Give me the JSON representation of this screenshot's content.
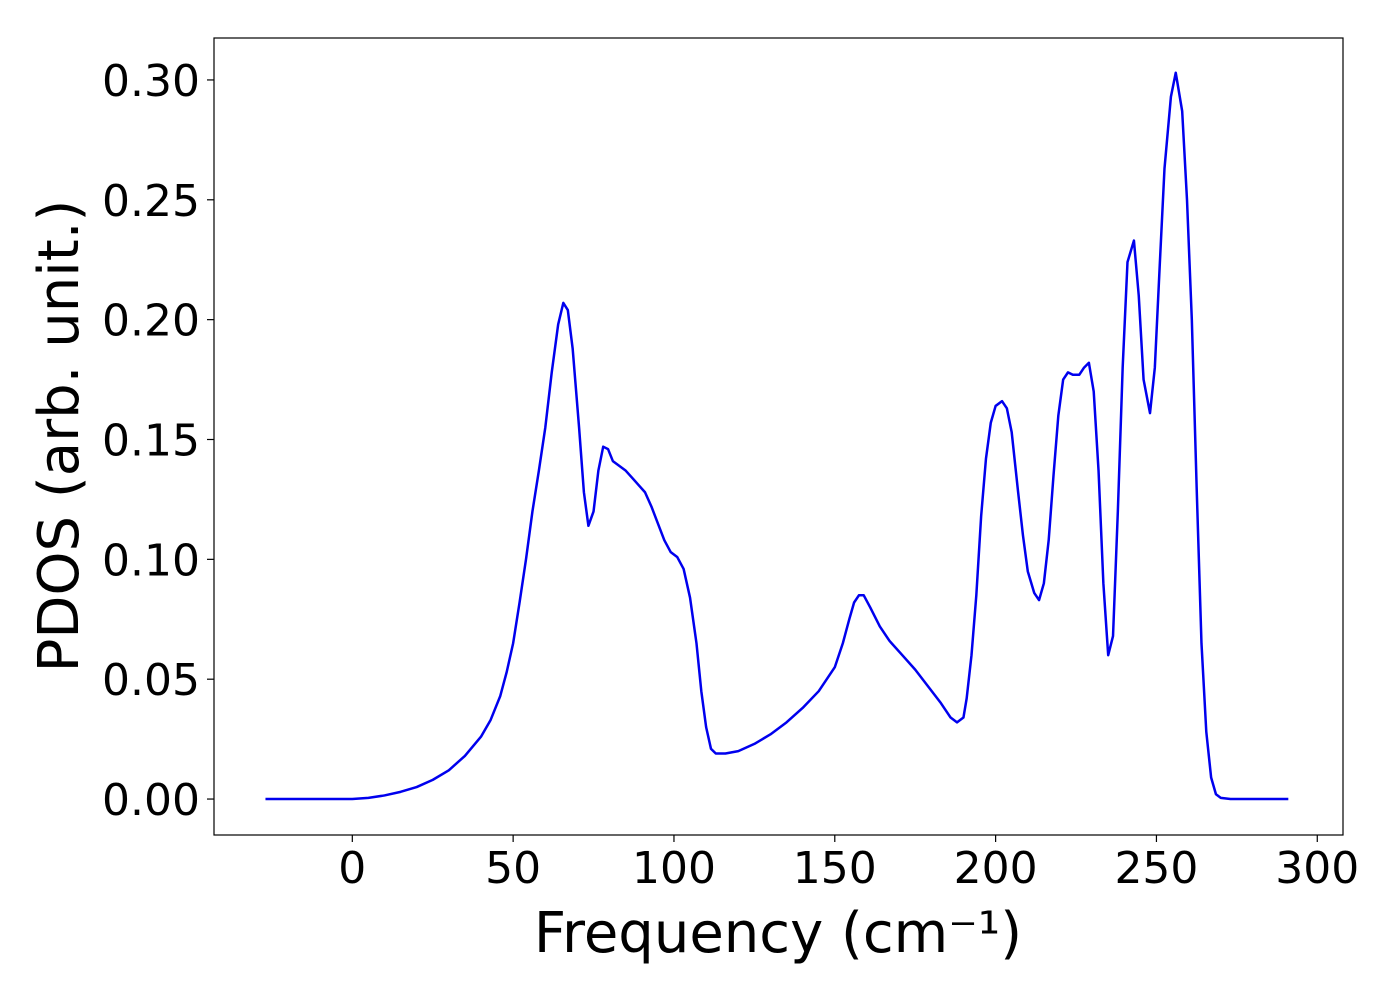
{
  "chart_data": {
    "type": "line",
    "xlabel": "Frequency (cm⁻¹)",
    "ylabel": "PDOS (arb. unit.)",
    "xlim": [
      -43,
      308
    ],
    "ylim": [
      -0.015,
      0.3175
    ],
    "xticks": [
      0,
      50,
      100,
      150,
      200,
      250,
      300
    ],
    "yticks": [
      {
        "value": 0,
        "label": "0.00"
      },
      {
        "value": 0.05,
        "label": "0.05"
      },
      {
        "value": 0.1,
        "label": "0.10"
      },
      {
        "value": 0.15,
        "label": "0.15"
      },
      {
        "value": 0.2,
        "label": "0.20"
      },
      {
        "value": 0.25,
        "label": "0.25"
      },
      {
        "value": 0.3,
        "label": "0.30"
      }
    ],
    "x": [
      -27,
      -10,
      0,
      5,
      10,
      15,
      20,
      25,
      30,
      35,
      40,
      43,
      46,
      48,
      50,
      52,
      54,
      56,
      58,
      60,
      62,
      64,
      65.6,
      67,
      68.5,
      70.5,
      72,
      73.4,
      75,
      76.5,
      78,
      79.5,
      81,
      83,
      85,
      87,
      89,
      91,
      93,
      95,
      97,
      99,
      101,
      103,
      105,
      107,
      108.5,
      110,
      111.5,
      113,
      116,
      120,
      125,
      130,
      135,
      140,
      145,
      150,
      152.5,
      154.5,
      156,
      157.5,
      159,
      161,
      164,
      167,
      171,
      175,
      179,
      183,
      186,
      188,
      190,
      191,
      192.5,
      194,
      195.5,
      197,
      198.5,
      200,
      202,
      203.5,
      205,
      207,
      208.5,
      210,
      212,
      213.5,
      215,
      216.5,
      218,
      219.5,
      221,
      222.5,
      224,
      226,
      227.5,
      229,
      230.5,
      232,
      233.5,
      235,
      236.5,
      238,
      239.5,
      241,
      243,
      244.5,
      246,
      248,
      249.5,
      251,
      252.5,
      254.5,
      256,
      258,
      259.5,
      261,
      262.5,
      264,
      265.5,
      267,
      268.5,
      270,
      273,
      291
    ],
    "series": [
      {
        "name": "PDOS",
        "color": "#0000ee",
        "values": [
          0,
          0,
          0,
          0.0005,
          0.0015,
          0.003,
          0.005,
          0.008,
          0.012,
          0.018,
          0.026,
          0.033,
          0.043,
          0.053,
          0.065,
          0.082,
          0.1,
          0.12,
          0.137,
          0.155,
          0.178,
          0.198,
          0.207,
          0.204,
          0.188,
          0.155,
          0.128,
          0.114,
          0.12,
          0.137,
          0.147,
          0.146,
          0.141,
          0.139,
          0.137,
          0.134,
          0.131,
          0.128,
          0.122,
          0.115,
          0.108,
          0.103,
          0.101,
          0.096,
          0.084,
          0.065,
          0.045,
          0.03,
          0.021,
          0.019,
          0.019,
          0.02,
          0.023,
          0.027,
          0.032,
          0.038,
          0.045,
          0.055,
          0.065,
          0.075,
          0.082,
          0.085,
          0.085,
          0.08,
          0.072,
          0.066,
          0.06,
          0.054,
          0.047,
          0.04,
          0.034,
          0.032,
          0.034,
          0.042,
          0.06,
          0.085,
          0.118,
          0.142,
          0.157,
          0.164,
          0.166,
          0.163,
          0.153,
          0.128,
          0.11,
          0.095,
          0.086,
          0.083,
          0.09,
          0.108,
          0.135,
          0.16,
          0.175,
          0.178,
          0.177,
          0.177,
          0.18,
          0.182,
          0.17,
          0.137,
          0.09,
          0.06,
          0.068,
          0.12,
          0.18,
          0.224,
          0.233,
          0.21,
          0.175,
          0.161,
          0.18,
          0.222,
          0.263,
          0.293,
          0.303,
          0.287,
          0.25,
          0.2,
          0.13,
          0.065,
          0.028,
          0.009,
          0.002,
          0.0005,
          0,
          0
        ]
      }
    ]
  }
}
